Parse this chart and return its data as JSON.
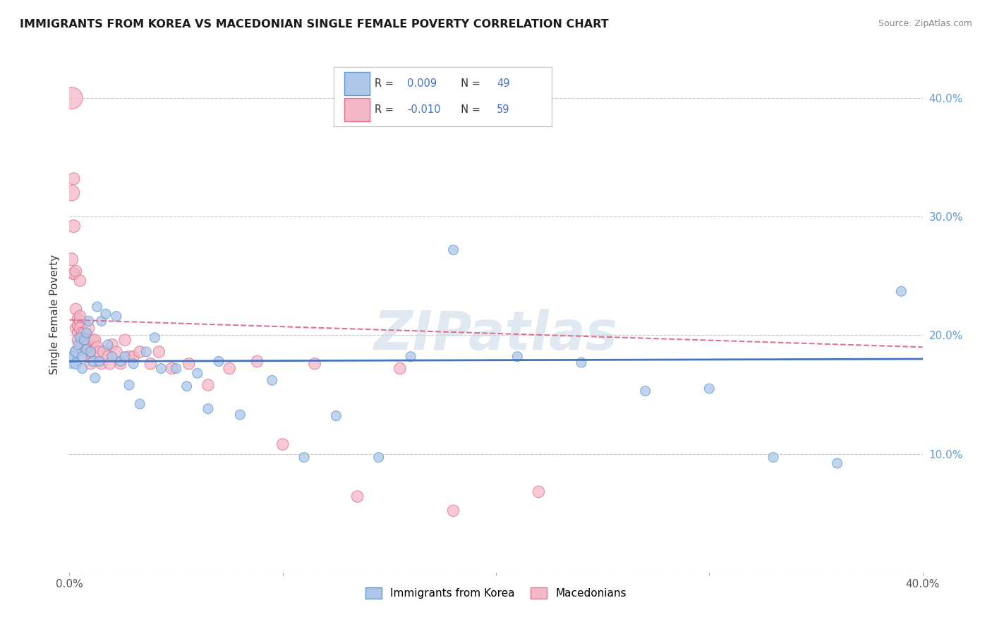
{
  "title": "IMMIGRANTS FROM KOREA VS MACEDONIAN SINGLE FEMALE POVERTY CORRELATION CHART",
  "source": "Source: ZipAtlas.com",
  "ylabel": "Single Female Poverty",
  "xlim": [
    0,
    0.4
  ],
  "ylim": [
    0.0,
    0.435
  ],
  "watermark": "ZIPatlas",
  "korea_color": "#aec6e8",
  "korea_edge": "#5b9bd5",
  "mac_color": "#f4b8c8",
  "mac_edge": "#e07090",
  "trend_korea_color": "#4472c4",
  "trend_mac_color": "#e07090",
  "korea_x": [
    0.001,
    0.002,
    0.003,
    0.003,
    0.004,
    0.005,
    0.006,
    0.006,
    0.007,
    0.008,
    0.008,
    0.009,
    0.01,
    0.011,
    0.012,
    0.013,
    0.014,
    0.015,
    0.017,
    0.018,
    0.02,
    0.022,
    0.024,
    0.026,
    0.028,
    0.03,
    0.033,
    0.036,
    0.04,
    0.043,
    0.05,
    0.055,
    0.06,
    0.065,
    0.07,
    0.08,
    0.095,
    0.11,
    0.125,
    0.145,
    0.16,
    0.18,
    0.21,
    0.24,
    0.27,
    0.3,
    0.33,
    0.36,
    0.39
  ],
  "korea_y": [
    0.178,
    0.182,
    0.176,
    0.186,
    0.192,
    0.198,
    0.182,
    0.172,
    0.196,
    0.188,
    0.202,
    0.212,
    0.186,
    0.178,
    0.164,
    0.224,
    0.178,
    0.212,
    0.218,
    0.192,
    0.182,
    0.216,
    0.178,
    0.182,
    0.158,
    0.176,
    0.142,
    0.186,
    0.198,
    0.172,
    0.172,
    0.157,
    0.168,
    0.138,
    0.178,
    0.133,
    0.162,
    0.097,
    0.132,
    0.097,
    0.182,
    0.272,
    0.182,
    0.177,
    0.153,
    0.155,
    0.097,
    0.092,
    0.237
  ],
  "korea_sizes": [
    200,
    150,
    120,
    120,
    100,
    100,
    100,
    100,
    100,
    100,
    100,
    100,
    100,
    100,
    100,
    100,
    100,
    100,
    100,
    100,
    100,
    100,
    100,
    100,
    100,
    100,
    100,
    100,
    100,
    100,
    100,
    100,
    100,
    100,
    100,
    100,
    100,
    100,
    100,
    100,
    100,
    100,
    100,
    100,
    100,
    100,
    100,
    100,
    100
  ],
  "mac_x": [
    0.001,
    0.001,
    0.001,
    0.002,
    0.002,
    0.002,
    0.002,
    0.003,
    0.003,
    0.003,
    0.003,
    0.004,
    0.004,
    0.004,
    0.004,
    0.005,
    0.005,
    0.005,
    0.005,
    0.006,
    0.006,
    0.006,
    0.007,
    0.007,
    0.007,
    0.008,
    0.008,
    0.009,
    0.009,
    0.01,
    0.01,
    0.011,
    0.012,
    0.013,
    0.014,
    0.015,
    0.016,
    0.018,
    0.019,
    0.02,
    0.022,
    0.024,
    0.026,
    0.028,
    0.03,
    0.033,
    0.038,
    0.042,
    0.048,
    0.056,
    0.065,
    0.075,
    0.088,
    0.1,
    0.115,
    0.135,
    0.155,
    0.18,
    0.22
  ],
  "mac_y": [
    0.4,
    0.32,
    0.264,
    0.292,
    0.252,
    0.332,
    0.252,
    0.254,
    0.206,
    0.222,
    0.186,
    0.214,
    0.202,
    0.196,
    0.208,
    0.212,
    0.216,
    0.206,
    0.246,
    0.202,
    0.192,
    0.196,
    0.202,
    0.196,
    0.186,
    0.196,
    0.192,
    0.192,
    0.206,
    0.186,
    0.176,
    0.196,
    0.196,
    0.19,
    0.186,
    0.176,
    0.186,
    0.182,
    0.176,
    0.192,
    0.186,
    0.176,
    0.196,
    0.182,
    0.182,
    0.186,
    0.176,
    0.186,
    0.172,
    0.176,
    0.158,
    0.172,
    0.178,
    0.108,
    0.176,
    0.064,
    0.172,
    0.052,
    0.068
  ],
  "mac_sizes": [
    500,
    260,
    170,
    170,
    160,
    150,
    140,
    140,
    140,
    140,
    140,
    140,
    140,
    140,
    140,
    140,
    140,
    140,
    140,
    140,
    140,
    140,
    140,
    140,
    140,
    140,
    140,
    140,
    140,
    140,
    140,
    140,
    140,
    140,
    140,
    140,
    140,
    140,
    140,
    140,
    140,
    140,
    140,
    140,
    140,
    140,
    140,
    140,
    140,
    140,
    140,
    140,
    140,
    140,
    140,
    140,
    140,
    140,
    140
  ],
  "trend_korea_y0": 0.178,
  "trend_korea_y1": 0.18,
  "trend_mac_y0": 0.213,
  "trend_mac_y1": 0.19
}
